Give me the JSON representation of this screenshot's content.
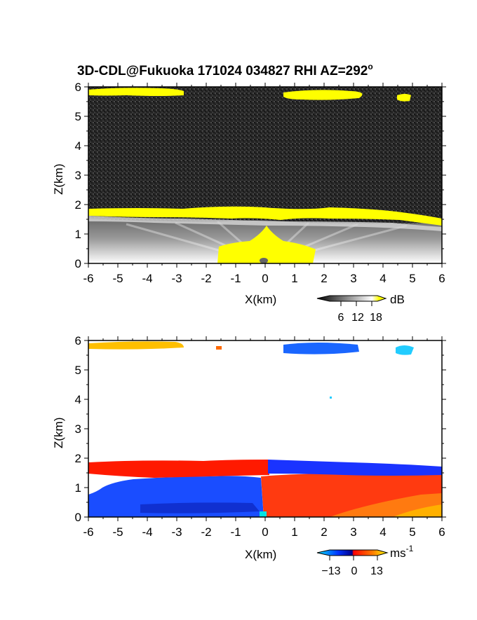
{
  "title": "3D-CDL@Fukuoka 171024 034827 RHI AZ=292",
  "title_degree": "o",
  "chart_data": [
    {
      "type": "heatmap",
      "panel": "reflectivity",
      "xlabel": "X(km)",
      "ylabel": "Z(km)",
      "xlim": [
        -6,
        6
      ],
      "ylim": [
        0,
        6
      ],
      "xticks": [
        "-6",
        "-5",
        "-4",
        "-3",
        "-2",
        "-1",
        "0",
        "1",
        "2",
        "3",
        "4",
        "5",
        "6"
      ],
      "yticks": [
        "0",
        "1",
        "2",
        "3",
        "4",
        "5",
        "6"
      ],
      "colorbar": {
        "unit": "dB",
        "ticks": [
          "6",
          "12",
          "18"
        ],
        "colors": [
          "#000000",
          "#ffffff",
          "#ffff00"
        ]
      },
      "features": [
        {
          "kind": "layer",
          "x": [
            -6,
            -2.8
          ],
          "z": [
            5.6,
            5.85
          ],
          "level": "high"
        },
        {
          "kind": "layer",
          "x": [
            0.6,
            3.2
          ],
          "z": [
            5.5,
            5.8
          ],
          "level": "high"
        },
        {
          "kind": "layer",
          "x": [
            4.5,
            4.9
          ],
          "z": [
            5.5,
            5.7
          ],
          "level": "high"
        },
        {
          "kind": "layer",
          "x": [
            -6,
            6
          ],
          "z": [
            1.5,
            1.85
          ],
          "level": "high"
        },
        {
          "kind": "region",
          "x": [
            -6,
            6
          ],
          "z": [
            0,
            1.5
          ],
          "level": "medium"
        },
        {
          "kind": "region",
          "x": [
            -1.6,
            1.6
          ],
          "z": [
            0,
            0.8
          ],
          "level": "high"
        }
      ]
    },
    {
      "type": "heatmap",
      "panel": "doppler velocity",
      "xlabel": "X(km)",
      "ylabel": "Z(km)",
      "xlim": [
        -6,
        6
      ],
      "ylim": [
        0,
        6
      ],
      "xticks": [
        "-6",
        "-5",
        "-4",
        "-3",
        "-2",
        "-1",
        "0",
        "1",
        "2",
        "3",
        "4",
        "5",
        "6"
      ],
      "yticks": [
        "0",
        "1",
        "2",
        "3",
        "4",
        "5",
        "6"
      ],
      "colorbar": {
        "unit": "ms",
        "unit_exp": "-1",
        "ticks": [
          "−13",
          "0",
          "13"
        ],
        "colors": [
          "#00e5ff",
          "#0033ff",
          "#ff0000",
          "#ffff00"
        ]
      },
      "features": [
        {
          "kind": "layer",
          "x": [
            -6,
            -2.8
          ],
          "z": [
            5.7,
            5.95
          ],
          "velocity": 10
        },
        {
          "kind": "layer",
          "x": [
            0.6,
            3.2
          ],
          "z": [
            5.6,
            5.9
          ],
          "velocity": -9
        },
        {
          "kind": "layer",
          "x": [
            4.5,
            5
          ],
          "z": [
            5.6,
            5.8
          ],
          "velocity": -13
        },
        {
          "kind": "layer",
          "x": [
            -6,
            0.5
          ],
          "z": [
            1.5,
            1.85
          ],
          "velocity": 3
        },
        {
          "kind": "layer",
          "x": [
            0.5,
            6
          ],
          "z": [
            1.45,
            1.8
          ],
          "velocity": -3
        },
        {
          "kind": "region",
          "x": [
            -6,
            0
          ],
          "z": [
            0,
            1.4
          ],
          "velocity": -6
        },
        {
          "kind": "region",
          "x": [
            0,
            6
          ],
          "z": [
            0,
            1.45
          ],
          "velocity": 4
        }
      ]
    }
  ]
}
